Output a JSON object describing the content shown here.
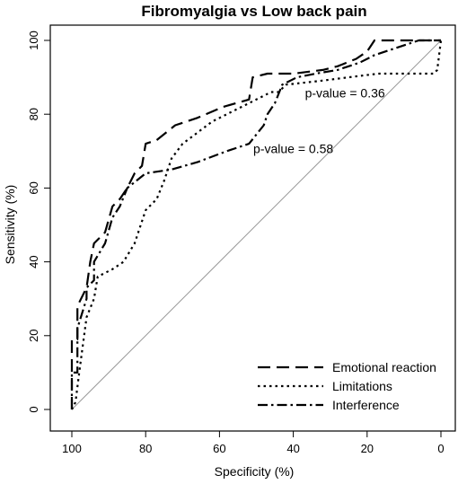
{
  "chart_data": {
    "type": "line",
    "title": "Fibromyalgia vs Low back pain",
    "xlabel": "Specificity (%)",
    "ylabel": "Sensitivity (%)",
    "xlim": [
      100,
      0
    ],
    "ylim": [
      0,
      100
    ],
    "x_ticks": [
      100,
      80,
      60,
      40,
      20,
      0
    ],
    "y_ticks": [
      0,
      20,
      40,
      60,
      80,
      100
    ],
    "x_reversed": true,
    "grid": false,
    "legend_position": "bottom-right",
    "diagonal_color": "#999999",
    "line_color": "#000000",
    "series": [
      {
        "name": "Emotional reaction",
        "dash": "long-dash",
        "points": [
          [
            100,
            0
          ],
          [
            100,
            19
          ],
          [
            98.5,
            19
          ],
          [
            98.5,
            28
          ],
          [
            96,
            33
          ],
          [
            95,
            40
          ],
          [
            94,
            45
          ],
          [
            91,
            48
          ],
          [
            89,
            55
          ],
          [
            87,
            57
          ],
          [
            85,
            60
          ],
          [
            83,
            64
          ],
          [
            81,
            66
          ],
          [
            80,
            72
          ],
          [
            77,
            73
          ],
          [
            72,
            77
          ],
          [
            66,
            79
          ],
          [
            59,
            82
          ],
          [
            52,
            84
          ],
          [
            51,
            90
          ],
          [
            47,
            91
          ],
          [
            40,
            91
          ],
          [
            32,
            92
          ],
          [
            28,
            93
          ],
          [
            23,
            95
          ],
          [
            20,
            97
          ],
          [
            18,
            100
          ],
          [
            15,
            100
          ],
          [
            8,
            100
          ],
          [
            4,
            100
          ],
          [
            0,
            100
          ]
        ]
      },
      {
        "name": "Limitations",
        "dash": "dotted",
        "points": [
          [
            100,
            0
          ],
          [
            99,
            2
          ],
          [
            98,
            10
          ],
          [
            96,
            25
          ],
          [
            94,
            30
          ],
          [
            93,
            36
          ],
          [
            89,
            38
          ],
          [
            86,
            40
          ],
          [
            83,
            45
          ],
          [
            80,
            54
          ],
          [
            77,
            57
          ],
          [
            75,
            62
          ],
          [
            73,
            68
          ],
          [
            70,
            72
          ],
          [
            66,
            75
          ],
          [
            62,
            78
          ],
          [
            56,
            81
          ],
          [
            52,
            83
          ],
          [
            46,
            86
          ],
          [
            44,
            86
          ],
          [
            42,
            88
          ],
          [
            33,
            89
          ],
          [
            25,
            90
          ],
          [
            17,
            91
          ],
          [
            10,
            91
          ],
          [
            4,
            91
          ],
          [
            2,
            91
          ],
          [
            1,
            92
          ],
          [
            0,
            100
          ]
        ]
      },
      {
        "name": "Interference",
        "dash": "dash-dot",
        "points": [
          [
            100,
            0
          ],
          [
            100,
            10
          ],
          [
            98.5,
            10
          ],
          [
            98.5,
            22
          ],
          [
            96,
            30
          ],
          [
            96,
            33
          ],
          [
            94,
            35
          ],
          [
            94,
            40
          ],
          [
            91,
            45
          ],
          [
            89,
            52
          ],
          [
            87,
            55
          ],
          [
            85,
            60
          ],
          [
            80,
            64
          ],
          [
            73,
            65
          ],
          [
            66,
            67
          ],
          [
            58,
            70
          ],
          [
            52,
            72
          ],
          [
            48,
            77
          ],
          [
            47,
            80
          ],
          [
            45,
            83
          ],
          [
            43,
            88
          ],
          [
            39,
            90
          ],
          [
            34,
            91
          ],
          [
            28,
            92
          ],
          [
            22,
            94
          ],
          [
            18,
            96
          ],
          [
            12,
            98
          ],
          [
            6,
            100
          ],
          [
            0,
            100
          ]
        ]
      }
    ],
    "annotations": [
      {
        "text": "p-value = 0.36",
        "x": 26,
        "y": 84.5
      },
      {
        "text": "p-value = 0.58",
        "x": 40,
        "y": 69.5
      }
    ]
  }
}
